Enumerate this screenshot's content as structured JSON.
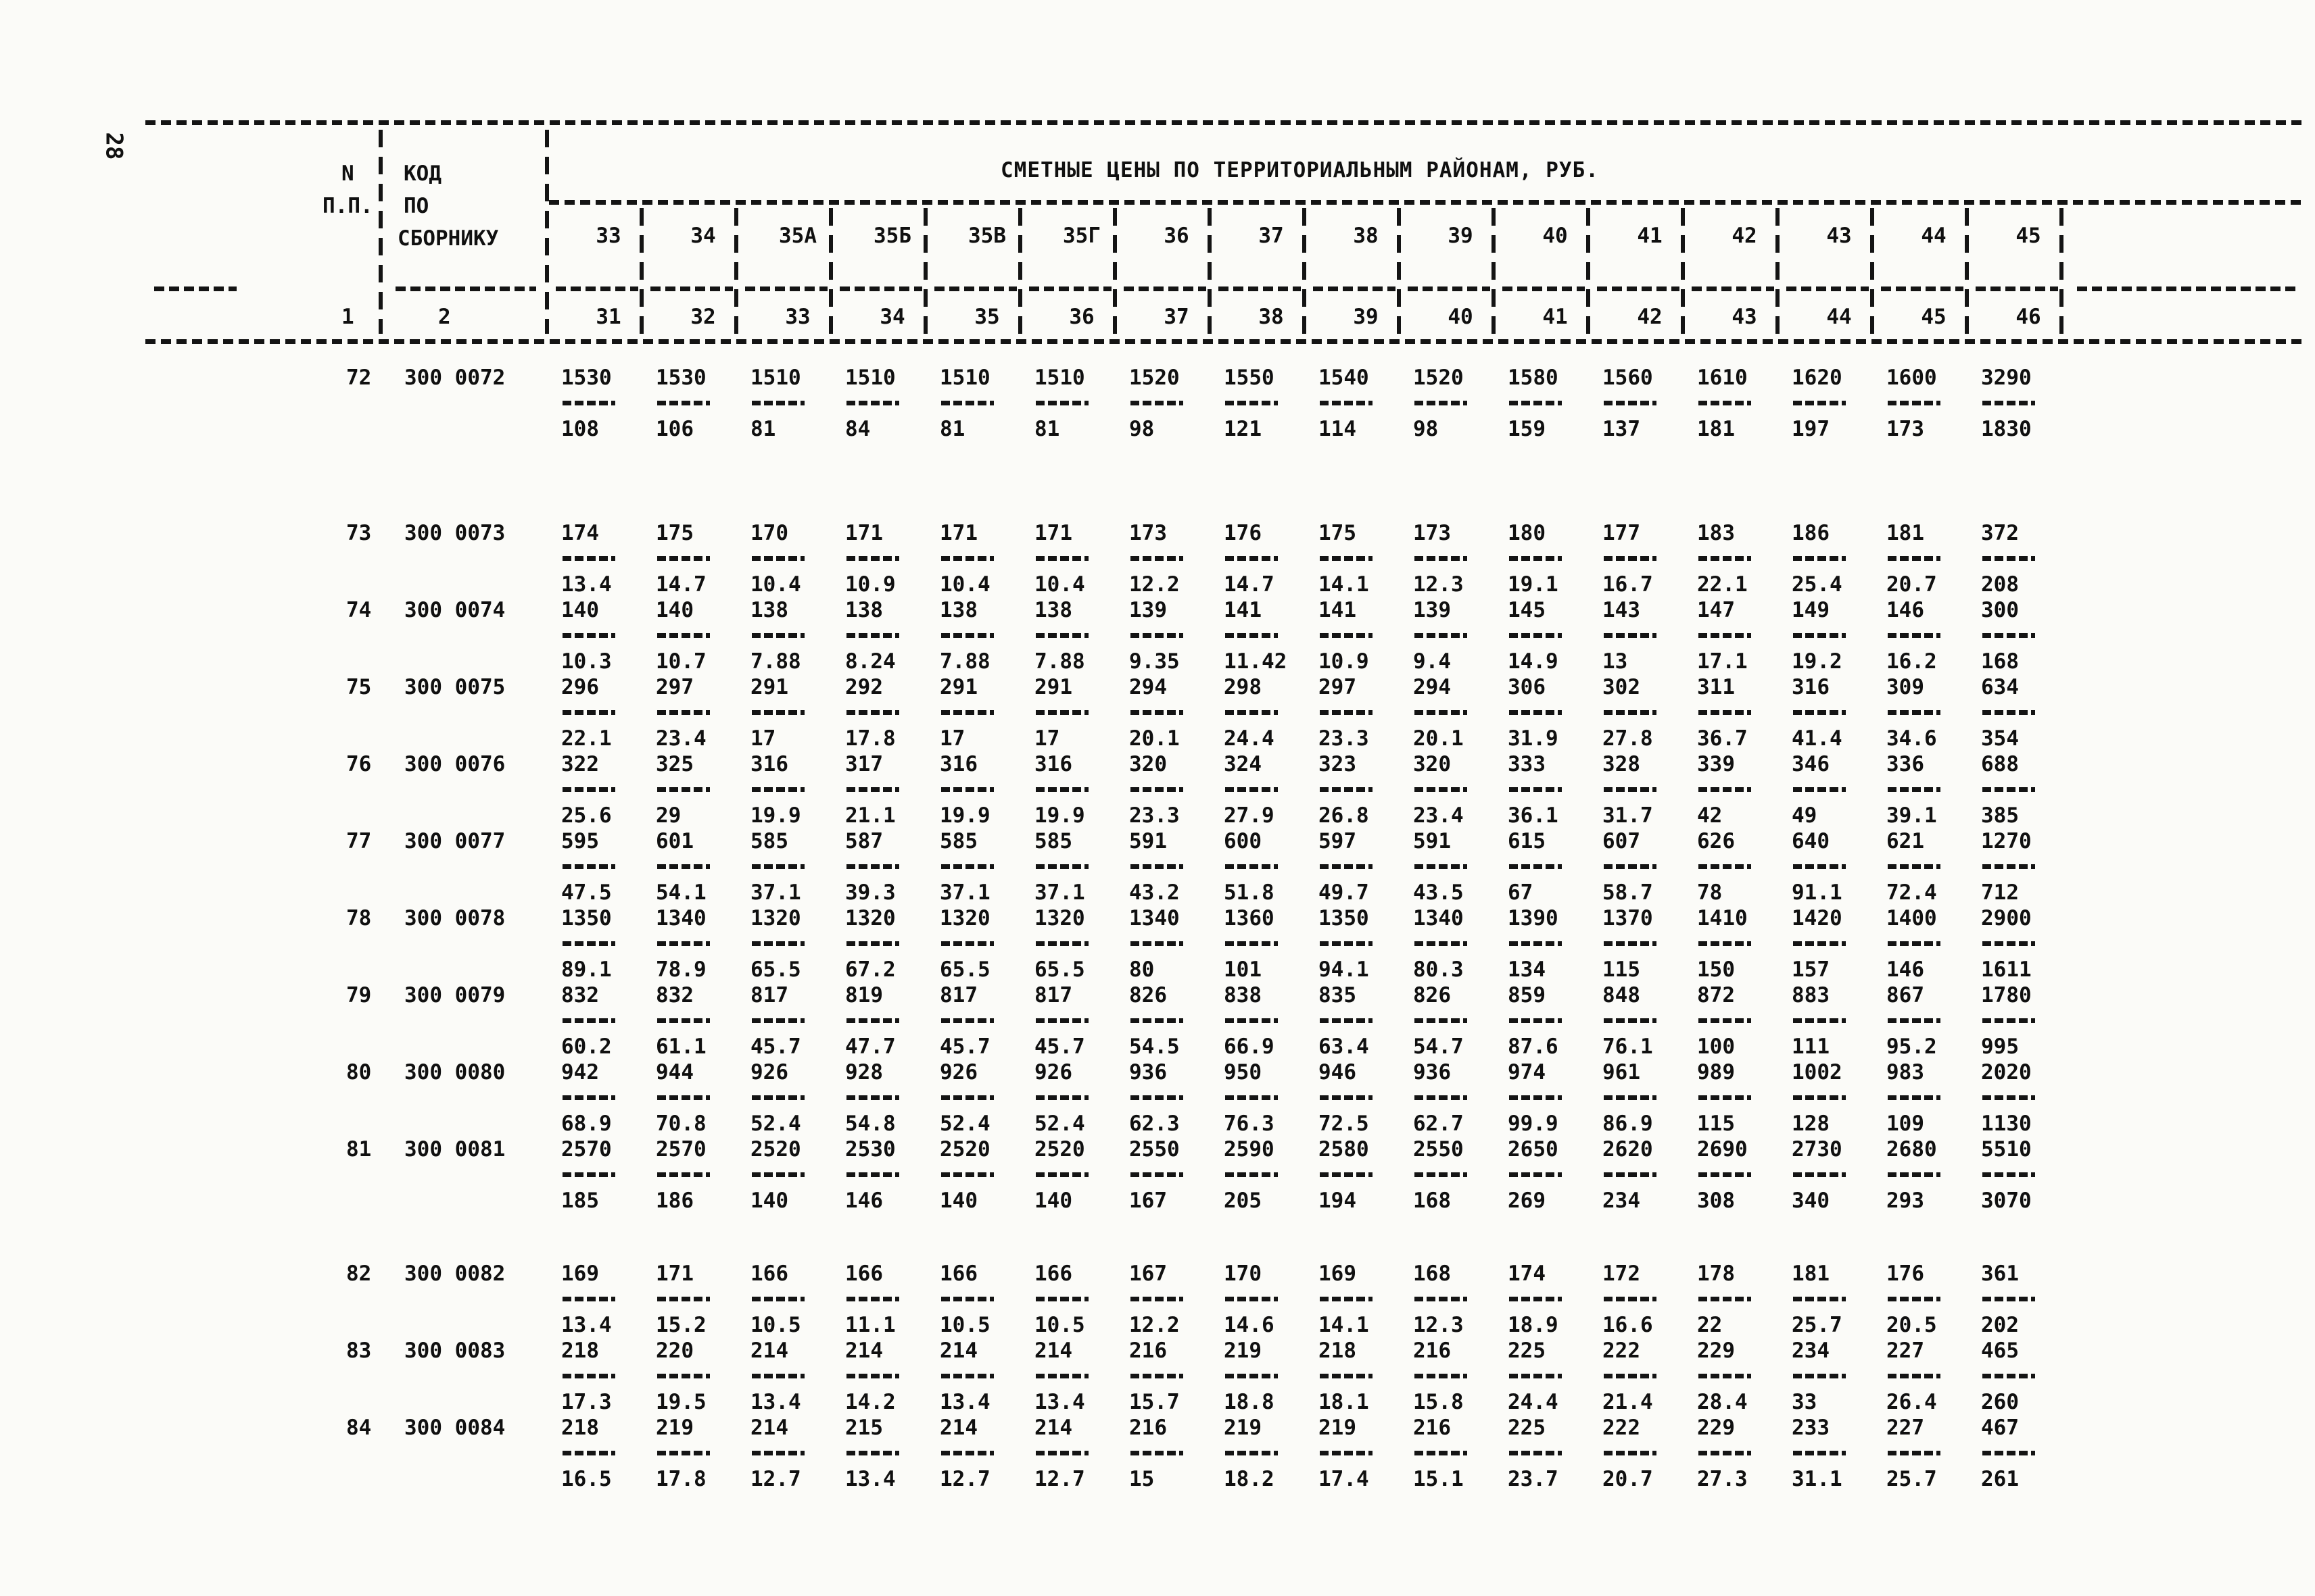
{
  "page": {
    "number": "28"
  },
  "table": {
    "title": "СМЕТНЫЕ ЦЕНЫ ПО ТЕРРИТОРИАЛЬНЫМ РАЙОНАМ, РУБ.",
    "header": {
      "n_line1": "N",
      "n_line2": "П.П.",
      "code_line1": "КОД",
      "code_line2": "ПО",
      "code_line3": "СБОРНИКУ"
    },
    "districts": [
      "33",
      "34",
      "35А",
      "35Б",
      "35В",
      "35Г",
      "36",
      "37",
      "38",
      "39",
      "40",
      "41",
      "42",
      "43",
      "44",
      "45"
    ],
    "index_row": [
      "1",
      "2",
      "31",
      "32",
      "33",
      "34",
      "35",
      "36",
      "37",
      "38",
      "39",
      "40",
      "41",
      "42",
      "43",
      "44",
      "45",
      "46"
    ],
    "rows": [
      {
        "num": "72",
        "code": "300 0072",
        "spacer_after": "lg",
        "upper": [
          "1530",
          "1530",
          "1510",
          "1510",
          "1510",
          "1510",
          "1520",
          "1550",
          "1540",
          "1520",
          "1580",
          "1560",
          "1610",
          "1620",
          "1600",
          "3290"
        ],
        "lower": [
          "108",
          "106",
          "81",
          "84",
          "81",
          "81",
          "98",
          "121",
          "114",
          "98",
          "159",
          "137",
          "181",
          "197",
          "173",
          "1830"
        ]
      },
      {
        "num": "73",
        "code": "300 0073",
        "spacer_after": "",
        "upper": [
          "174",
          "175",
          "170",
          "171",
          "171",
          "171",
          "173",
          "176",
          "175",
          "173",
          "180",
          "177",
          "183",
          "186",
          "181",
          "372"
        ],
        "lower": [
          "13.4",
          "14.7",
          "10.4",
          "10.9",
          "10.4",
          "10.4",
          "12.2",
          "14.7",
          "14.1",
          "12.3",
          "19.1",
          "16.7",
          "22.1",
          "25.4",
          "20.7",
          "208"
        ]
      },
      {
        "num": "74",
        "code": "300 0074",
        "spacer_after": "",
        "upper": [
          "140",
          "140",
          "138",
          "138",
          "138",
          "138",
          "139",
          "141",
          "141",
          "139",
          "145",
          "143",
          "147",
          "149",
          "146",
          "300"
        ],
        "lower": [
          "10.3",
          "10.7",
          "7.88",
          "8.24",
          "7.88",
          "7.88",
          "9.35",
          "11.42",
          "10.9",
          "9.4",
          "14.9",
          "13",
          "17.1",
          "19.2",
          "16.2",
          "168"
        ]
      },
      {
        "num": "75",
        "code": "300 0075",
        "spacer_after": "",
        "upper": [
          "296",
          "297",
          "291",
          "292",
          "291",
          "291",
          "294",
          "298",
          "297",
          "294",
          "306",
          "302",
          "311",
          "316",
          "309",
          "634"
        ],
        "lower": [
          "22.1",
          "23.4",
          "17",
          "17.8",
          "17",
          "17",
          "20.1",
          "24.4",
          "23.3",
          "20.1",
          "31.9",
          "27.8",
          "36.7",
          "41.4",
          "34.6",
          "354"
        ]
      },
      {
        "num": "76",
        "code": "300 0076",
        "spacer_after": "",
        "upper": [
          "322",
          "325",
          "316",
          "317",
          "316",
          "316",
          "320",
          "324",
          "323",
          "320",
          "333",
          "328",
          "339",
          "346",
          "336",
          "688"
        ],
        "lower": [
          "25.6",
          "29",
          "19.9",
          "21.1",
          "19.9",
          "19.9",
          "23.3",
          "27.9",
          "26.8",
          "23.4",
          "36.1",
          "31.7",
          "42",
          "49",
          "39.1",
          "385"
        ]
      },
      {
        "num": "77",
        "code": "300 0077",
        "spacer_after": "",
        "upper": [
          "595",
          "601",
          "585",
          "587",
          "585",
          "585",
          "591",
          "600",
          "597",
          "591",
          "615",
          "607",
          "626",
          "640",
          "621",
          "1270"
        ],
        "lower": [
          "47.5",
          "54.1",
          "37.1",
          "39.3",
          "37.1",
          "37.1",
          "43.2",
          "51.8",
          "49.7",
          "43.5",
          "67",
          "58.7",
          "78",
          "91.1",
          "72.4",
          "712"
        ]
      },
      {
        "num": "78",
        "code": "300 0078",
        "spacer_after": "",
        "upper": [
          "1350",
          "1340",
          "1320",
          "1320",
          "1320",
          "1320",
          "1340",
          "1360",
          "1350",
          "1340",
          "1390",
          "1370",
          "1410",
          "1420",
          "1400",
          "2900"
        ],
        "lower": [
          "89.1",
          "78.9",
          "65.5",
          "67.2",
          "65.5",
          "65.5",
          "80",
          "101",
          "94.1",
          "80.3",
          "134",
          "115",
          "150",
          "157",
          "146",
          "1611"
        ]
      },
      {
        "num": "79",
        "code": "300 0079",
        "spacer_after": "",
        "upper": [
          "832",
          "832",
          "817",
          "819",
          "817",
          "817",
          "826",
          "838",
          "835",
          "826",
          "859",
          "848",
          "872",
          "883",
          "867",
          "1780"
        ],
        "lower": [
          "60.2",
          "61.1",
          "45.7",
          "47.7",
          "45.7",
          "45.7",
          "54.5",
          "66.9",
          "63.4",
          "54.7",
          "87.6",
          "76.1",
          "100",
          "111",
          "95.2",
          "995"
        ]
      },
      {
        "num": "80",
        "code": "300 0080",
        "spacer_after": "",
        "upper": [
          "942",
          "944",
          "926",
          "928",
          "926",
          "926",
          "936",
          "950",
          "946",
          "936",
          "974",
          "961",
          "989",
          "1002",
          "983",
          "2020"
        ],
        "lower": [
          "68.9",
          "70.8",
          "52.4",
          "54.8",
          "52.4",
          "52.4",
          "62.3",
          "76.3",
          "72.5",
          "62.7",
          "99.9",
          "86.9",
          "115",
          "128",
          "109",
          "1130"
        ]
      },
      {
        "num": "81",
        "code": "300 0081",
        "spacer_after": "md",
        "upper": [
          "2570",
          "2570",
          "2520",
          "2530",
          "2520",
          "2520",
          "2550",
          "2590",
          "2580",
          "2550",
          "2650",
          "2620",
          "2690",
          "2730",
          "2680",
          "5510"
        ],
        "lower": [
          "185",
          "186",
          "140",
          "146",
          "140",
          "140",
          "167",
          "205",
          "194",
          "168",
          "269",
          "234",
          "308",
          "340",
          "293",
          "3070"
        ]
      },
      {
        "num": "82",
        "code": "300 0082",
        "spacer_after": "",
        "upper": [
          "169",
          "171",
          "166",
          "166",
          "166",
          "166",
          "167",
          "170",
          "169",
          "168",
          "174",
          "172",
          "178",
          "181",
          "176",
          "361"
        ],
        "lower": [
          "13.4",
          "15.2",
          "10.5",
          "11.1",
          "10.5",
          "10.5",
          "12.2",
          "14.6",
          "14.1",
          "12.3",
          "18.9",
          "16.6",
          "22",
          "25.7",
          "20.5",
          "202"
        ]
      },
      {
        "num": "83",
        "code": "300 0083",
        "spacer_after": "",
        "upper": [
          "218",
          "220",
          "214",
          "214",
          "214",
          "214",
          "216",
          "219",
          "218",
          "216",
          "225",
          "222",
          "229",
          "234",
          "227",
          "465"
        ],
        "lower": [
          "17.3",
          "19.5",
          "13.4",
          "14.2",
          "13.4",
          "13.4",
          "15.7",
          "18.8",
          "18.1",
          "15.8",
          "24.4",
          "21.4",
          "28.4",
          "33",
          "26.4",
          "260"
        ]
      },
      {
        "num": "84",
        "code": "300 0084",
        "spacer_after": "",
        "upper": [
          "218",
          "219",
          "214",
          "215",
          "214",
          "214",
          "216",
          "219",
          "219",
          "216",
          "225",
          "222",
          "229",
          "233",
          "227",
          "467"
        ],
        "lower": [
          "16.5",
          "17.8",
          "12.7",
          "13.4",
          "12.7",
          "12.7",
          "15",
          "18.2",
          "17.4",
          "15.1",
          "23.7",
          "20.7",
          "27.3",
          "31.1",
          "25.7",
          "261"
        ]
      }
    ]
  }
}
